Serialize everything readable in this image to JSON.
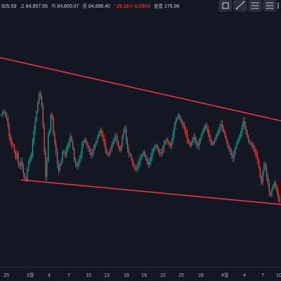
{
  "legend": {
    "open_value": "925.59",
    "high_label": "고",
    "high_value": "84,957.55",
    "low_label": "저",
    "low_value": "84,800.07",
    "close_label": "종",
    "close_value": "84,896.40",
    "change": "−29.18 (−0.03%)",
    "volume_label": "볼륨",
    "volume_value": "175.08"
  },
  "toolbar": {
    "icons": [
      "chart-type-icon",
      "trend-line-icon",
      "horizontal-line-icon",
      "drawing-tools-icon"
    ]
  },
  "colors": {
    "background": "#131722",
    "trendline": "#f23645",
    "candle_up": "#26a69a",
    "candle_down": "#ef5350",
    "text": "#b2b5be"
  },
  "chart_data": {
    "type": "candlestick",
    "x_tick_labels": [
      "25",
      "3월",
      "4",
      "7",
      "10",
      "13",
      "16",
      "19",
      "22",
      "25",
      "28",
      "4월",
      "4",
      "7",
      "10"
    ],
    "trendlines": [
      {
        "name": "upper-resistance",
        "from": "left-edge",
        "to": "right-edge",
        "direction": "descending"
      },
      {
        "name": "lower-support",
        "from": "left-edge",
        "to": "right-edge",
        "direction": "descending"
      }
    ],
    "path_shape": [
      0.38,
      0.36,
      0.36,
      0.38,
      0.4,
      0.45,
      0.52,
      0.55,
      0.57,
      0.58,
      0.62,
      0.66,
      0.63,
      0.7,
      0.71,
      0.68,
      0.72,
      0.76,
      0.79,
      0.8,
      0.73,
      0.68,
      0.66,
      0.64,
      0.55,
      0.48,
      0.42,
      0.36,
      0.3,
      0.24,
      0.26,
      0.32,
      0.45,
      0.62,
      0.78,
      0.68,
      0.5,
      0.48,
      0.38,
      0.4,
      0.5,
      0.56,
      0.62,
      0.7,
      0.74,
      0.7,
      0.68,
      0.62,
      0.62,
      0.64,
      0.6,
      0.58,
      0.56,
      0.52,
      0.55,
      0.6,
      0.67,
      0.7,
      0.71,
      0.69,
      0.66,
      0.64,
      0.58,
      0.55,
      0.54,
      0.56,
      0.58,
      0.6,
      0.62,
      0.64,
      0.62,
      0.6,
      0.57,
      0.55,
      0.52,
      0.5,
      0.48,
      0.5,
      0.53,
      0.56,
      0.6,
      0.63,
      0.64,
      0.62,
      0.6,
      0.57,
      0.55,
      0.53,
      0.52,
      0.55,
      0.59,
      0.61,
      0.58,
      0.52,
      0.48,
      0.47,
      0.55,
      0.6,
      0.63,
      0.64,
      0.67,
      0.7,
      0.72,
      0.73,
      0.72,
      0.7,
      0.68,
      0.66,
      0.64,
      0.62,
      0.64,
      0.66,
      0.68,
      0.7,
      0.68,
      0.65,
      0.62,
      0.6,
      0.58,
      0.58,
      0.6,
      0.62,
      0.63,
      0.62,
      0.6,
      0.57,
      0.55,
      0.54,
      0.56,
      0.57,
      0.58,
      0.55,
      0.5,
      0.45,
      0.42,
      0.4,
      0.38,
      0.4,
      0.42,
      0.44,
      0.45,
      0.48,
      0.5,
      0.54,
      0.56,
      0.58,
      0.56,
      0.54,
      0.52,
      0.55,
      0.57,
      0.58,
      0.56,
      0.53,
      0.5,
      0.48,
      0.46,
      0.45,
      0.47,
      0.5,
      0.53,
      0.55,
      0.57,
      0.56,
      0.54,
      0.52,
      0.5,
      0.48,
      0.46,
      0.44,
      0.46,
      0.49,
      0.52,
      0.55,
      0.58,
      0.6,
      0.62,
      0.64,
      0.66,
      0.63,
      0.59,
      0.56,
      0.54,
      0.52,
      0.5,
      0.46,
      0.42,
      0.45,
      0.48,
      0.52,
      0.55,
      0.56,
      0.57,
      0.58,
      0.6,
      0.62,
      0.64,
      0.67,
      0.72,
      0.78,
      0.82,
      0.75,
      0.7,
      0.72,
      0.78,
      0.82,
      0.88,
      0.9,
      0.86,
      0.84,
      0.82,
      0.85,
      0.88,
      0.92,
      0.94
    ]
  }
}
